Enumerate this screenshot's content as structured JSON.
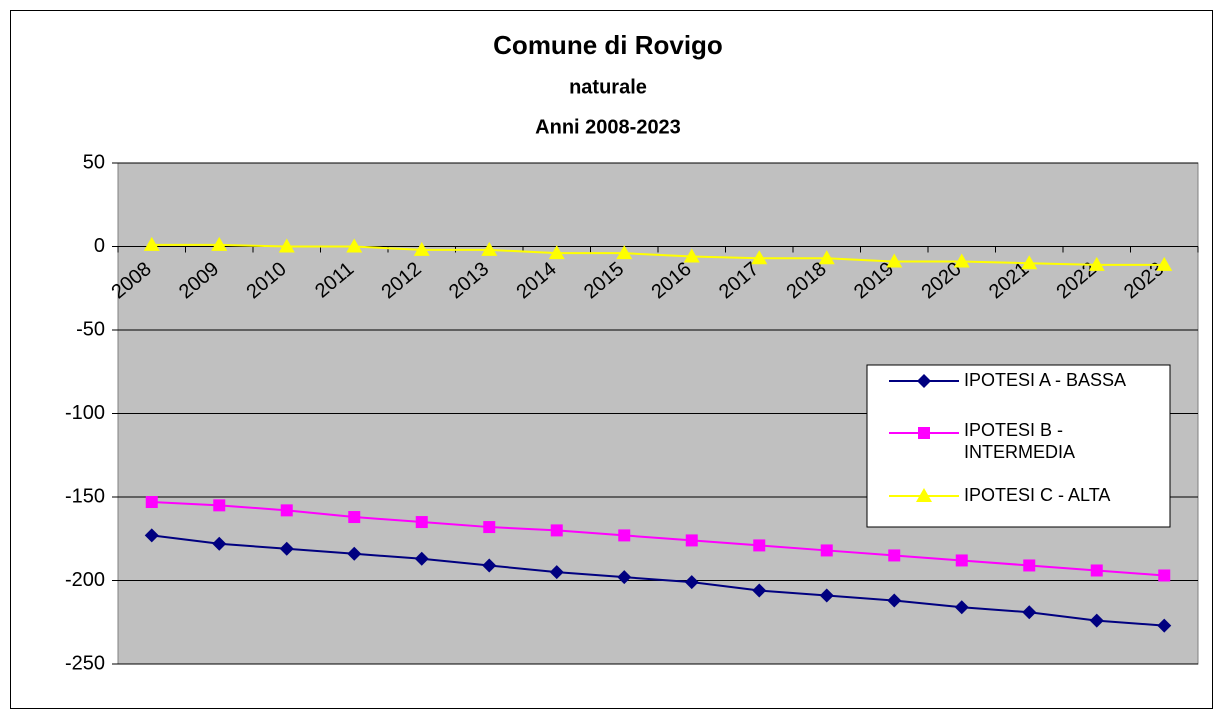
{
  "chart_data": {
    "type": "line",
    "title": "Comune di Rovigo",
    "subtitle": [
      "naturale",
      "Anni 2008-2023"
    ],
    "categories": [
      "2008",
      "2009",
      "2010",
      "2011",
      "2012",
      "2013",
      "2014",
      "2015",
      "2016",
      "2017",
      "2018",
      "2019",
      "2020",
      "2021",
      "2022",
      "2023"
    ],
    "series": [
      {
        "name": "IPOTESI A - BASSA",
        "color": "#000080",
        "marker": "diamond",
        "values": [
          -173,
          -178,
          -181,
          -184,
          -187,
          -191,
          -195,
          -198,
          -201,
          -206,
          -209,
          -212,
          -216,
          -219,
          -224,
          -227
        ]
      },
      {
        "name": "IPOTESI B - INTERMEDIA",
        "color": "#ff00ff",
        "marker": "square",
        "values": [
          -153,
          -155,
          -158,
          -162,
          -165,
          -168,
          -170,
          -173,
          -176,
          -179,
          -182,
          -185,
          -188,
          -191,
          -194,
          -197
        ]
      },
      {
        "name": "IPOTESI C - ALTA",
        "color": "#ffff00",
        "marker": "triangle",
        "values": [
          1,
          1,
          0,
          0,
          -2,
          -2,
          -4,
          -4,
          -6,
          -7,
          -7,
          -9,
          -9,
          -10,
          -11,
          -11
        ]
      }
    ],
    "ylim": [
      -250,
      50
    ],
    "yticks": [
      -250,
      -200,
      -150,
      -100,
      -50,
      0,
      50
    ],
    "grid": true,
    "legend": "right"
  }
}
